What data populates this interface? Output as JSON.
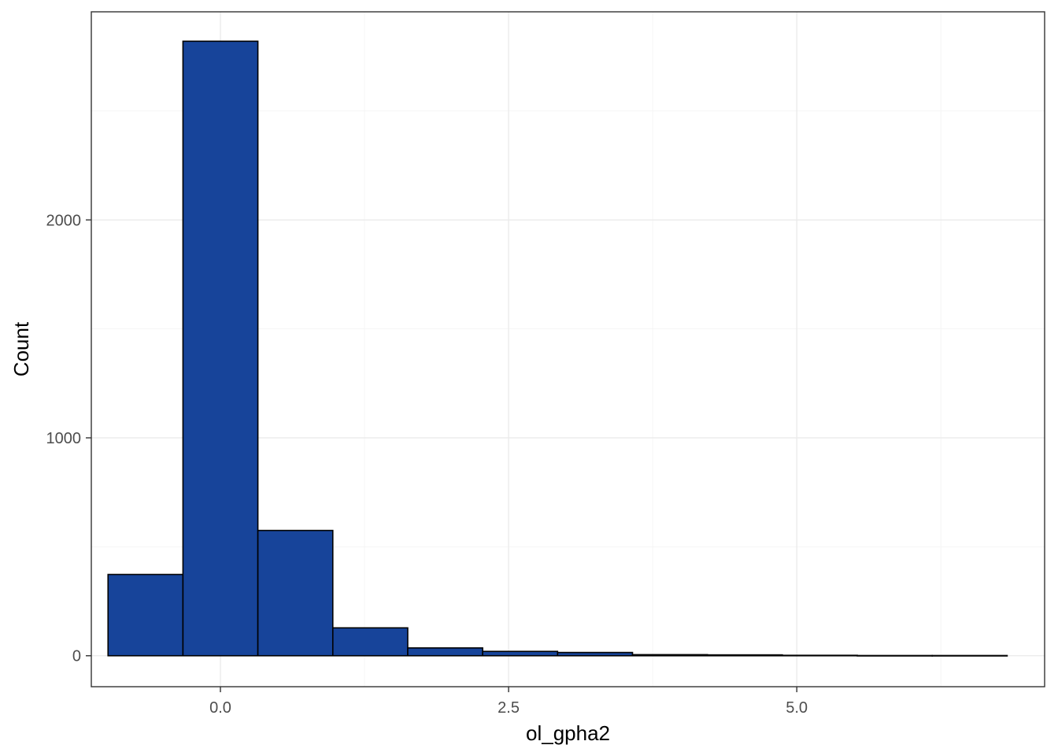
{
  "chart_data": {
    "type": "bar",
    "subtype": "histogram",
    "title": "",
    "xlabel": "ol_gpha2",
    "ylabel": "Count",
    "xlim": [
      -1.12,
      7.15
    ],
    "ylim": [
      -142,
      2955
    ],
    "x_ticks": [
      {
        "value": 0,
        "label": "0.0"
      },
      {
        "value": 2.5,
        "label": "2.5"
      },
      {
        "value": 5,
        "label": "5.0"
      }
    ],
    "y_ticks": [
      {
        "value": 0,
        "label": "0"
      },
      {
        "value": 1000,
        "label": "1000"
      },
      {
        "value": 2000,
        "label": "2000"
      }
    ],
    "bin_width": 0.65,
    "bins": [
      {
        "x0": -0.975,
        "x1": -0.325,
        "count": 373
      },
      {
        "x0": -0.325,
        "x1": 0.325,
        "count": 2820
      },
      {
        "x0": 0.325,
        "x1": 0.975,
        "count": 575
      },
      {
        "x0": 0.975,
        "x1": 1.625,
        "count": 128
      },
      {
        "x0": 1.625,
        "x1": 2.275,
        "count": 36
      },
      {
        "x0": 2.275,
        "x1": 2.925,
        "count": 20
      },
      {
        "x0": 2.925,
        "x1": 3.575,
        "count": 15
      },
      {
        "x0": 3.575,
        "x1": 4.225,
        "count": 5
      },
      {
        "x0": 4.225,
        "x1": 4.875,
        "count": 4
      },
      {
        "x0": 4.875,
        "x1": 5.525,
        "count": 2
      },
      {
        "x0": 5.525,
        "x1": 6.175,
        "count": 1
      },
      {
        "x0": 6.175,
        "x1": 6.825,
        "count": 1
      }
    ],
    "fill_color": "#17449a",
    "outline_color": "#000000",
    "grid": true,
    "legend": "none"
  }
}
